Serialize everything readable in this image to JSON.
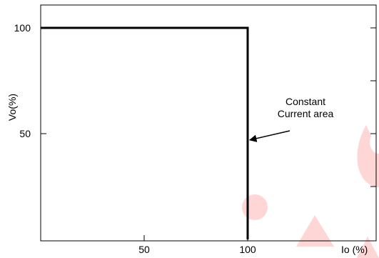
{
  "chart_data": {
    "type": "line",
    "xlabel": "Io (%)",
    "ylabel": "Vo(%)",
    "xlim": [
      0,
      150
    ],
    "ylim": [
      0,
      110
    ],
    "x_ticks": [
      50,
      100
    ],
    "y_ticks": [
      50,
      100
    ],
    "grid": false,
    "series": [
      {
        "x": [
          0,
          100,
          100
        ],
        "y": [
          100,
          100,
          0
        ],
        "color": "#000000"
      }
    ],
    "annotations": [
      {
        "lines": [
          "Constant",
          "Current area"
        ],
        "points_to": {
          "x": 100,
          "y": 46
        }
      }
    ]
  },
  "watermark": {
    "color": "#ff1a1a"
  }
}
